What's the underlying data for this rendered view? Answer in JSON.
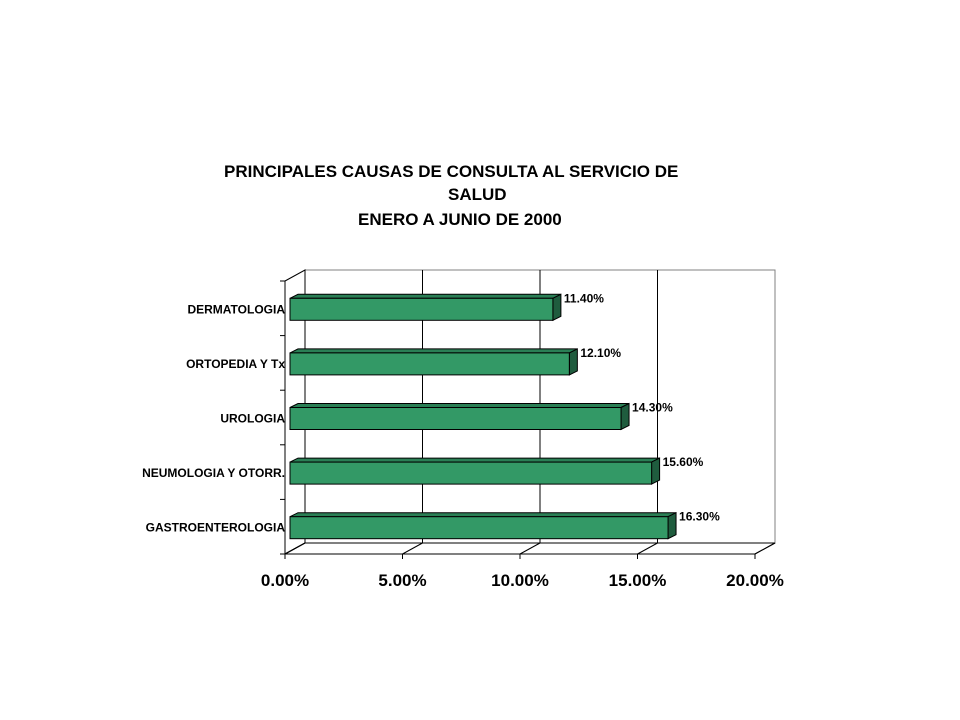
{
  "chart_data": {
    "type": "bar",
    "orientation": "horizontal",
    "title_lines": [
      "PRINCIPALES CAUSAS DE CONSULTA AL SERVICIO DE",
      "SALUD",
      "ENERO A JUNIO DE 2000"
    ],
    "categories": [
      "DERMATOLOGIA",
      "ORTOPEDIA Y Tx",
      "UROLOGIA",
      "NEUMOLOGIA Y OTORR.",
      "GASTROENTEROLOGIA"
    ],
    "values": [
      11.4,
      12.1,
      14.3,
      15.6,
      16.3
    ],
    "value_labels": [
      "11.40%",
      "12.10%",
      "14.30%",
      "15.60%",
      "16.30%"
    ],
    "xlim": [
      0,
      20
    ],
    "xticks": [
      0,
      5,
      10,
      15,
      20
    ],
    "xtick_labels": [
      "0.00%",
      "5.00%",
      "10.00%",
      "15.00%",
      "20.00%"
    ],
    "grid": "vertical",
    "legend": "none",
    "colors": {
      "bar_front": "#339966",
      "bar_top": "#2a7f55",
      "bar_side": "#1f5c3e",
      "bar_edge": "#000000",
      "grid": "#000000",
      "wall": "#808080"
    }
  }
}
